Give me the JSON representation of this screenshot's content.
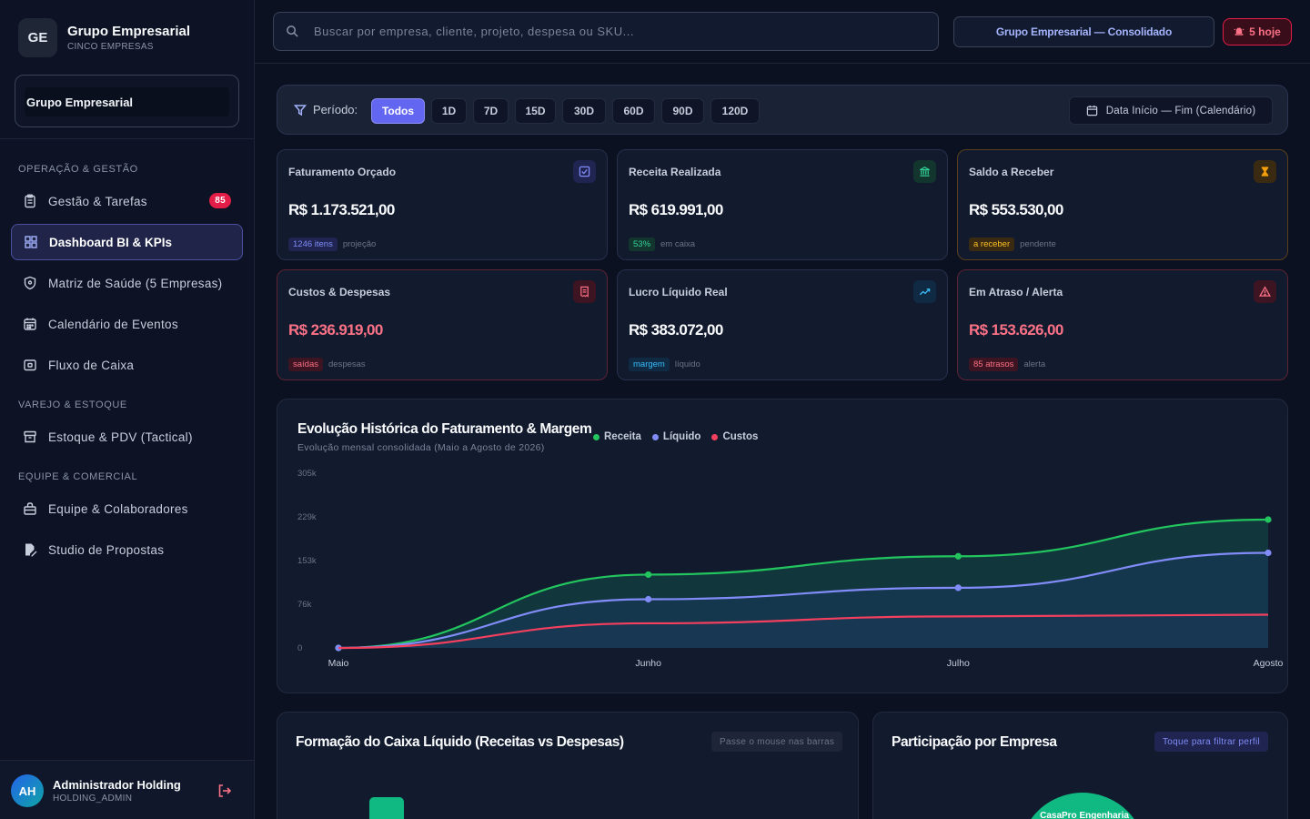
{
  "brand": {
    "initials": "GE",
    "name": "Grupo Empresarial",
    "subtitle": "CINCO EMPRESAS"
  },
  "company_selector": {
    "value": "Grupo Empresarial"
  },
  "sidebar": {
    "sections": [
      {
        "label": "OPERAÇÃO & GESTÃO"
      },
      {
        "label": "VAREJO & ESTOQUE"
      },
      {
        "label": "EQUIPE & COMERCIAL"
      }
    ],
    "items": [
      {
        "label": "Gestão & Tarefas",
        "icon": "clipboard-icon",
        "badge": "85"
      },
      {
        "label": "Dashboard BI & KPIs",
        "icon": "grid-icon",
        "active": true
      },
      {
        "label": "Matriz de Saúde (5 Empresas)",
        "icon": "shield-icon"
      },
      {
        "label": "Calendário de Eventos",
        "icon": "calendar-icon"
      },
      {
        "label": "Fluxo de Caixa",
        "icon": "wallet-icon"
      },
      {
        "label": "Estoque & PDV (Tactical)",
        "icon": "box-icon"
      },
      {
        "label": "Equipe & Colaboradores",
        "icon": "team-icon"
      },
      {
        "label": "Studio de Propostas",
        "icon": "edit-doc-icon"
      }
    ]
  },
  "user": {
    "initials": "AH",
    "name": "Administrador Holding",
    "role": "HOLDING_ADMIN"
  },
  "search": {
    "placeholder": "Buscar por empresa, cliente, projeto, despesa ou SKU..."
  },
  "header": {
    "context_label": "Grupo Empresarial — Consolidado",
    "alert_label": "5 hoje"
  },
  "period": {
    "label": "Período:",
    "options": [
      "Todos",
      "1D",
      "7D",
      "15D",
      "30D",
      "60D",
      "90D",
      "120D"
    ],
    "selected": "Todos",
    "date_range_label": "Data Início — Fim (Calendário)"
  },
  "kpis": [
    {
      "title": "Faturamento Orçado",
      "value": "R$ 1.173.521,00",
      "tag": "1246 itens",
      "sub": "projeção",
      "icon": "check-square-icon",
      "tone": "indigo"
    },
    {
      "title": "Receita Realizada",
      "value": "R$ 619.991,00",
      "tag": "53%",
      "sub": "em caixa",
      "icon": "bank-icon",
      "tone": "green"
    },
    {
      "title": "Saldo a Receber",
      "value": "R$ 553.530,00",
      "tag": "a receber",
      "sub": "pendente",
      "icon": "hourglass-icon",
      "tone": "amber"
    },
    {
      "title": "Custos & Despesas",
      "value": "R$ 236.919,00",
      "tag": "saídas",
      "sub": "despesas",
      "icon": "receipt-icon",
      "tone": "red"
    },
    {
      "title": "Lucro Líquido Real",
      "value": "R$ 383.072,00",
      "tag": "margem",
      "sub": "líquido",
      "icon": "trend-up-icon",
      "tone": "blue"
    },
    {
      "title": "Em Atraso / Alerta",
      "value": "R$ 153.626,00",
      "tag": "85 atrasos",
      "sub": "alerta",
      "icon": "warning-icon",
      "tone": "red"
    }
  ],
  "colors": {
    "receita": "#22c55e",
    "liquido": "#818cf8",
    "custos": "#f43f5e",
    "accent": "#6366f1"
  },
  "chart_data": {
    "type": "area",
    "title": "Evolução Histórica do Faturamento & Margem",
    "subtitle": "Evolução mensal consolidada (Maio a Agosto de 2026)",
    "categories": [
      "Maio",
      "Junho",
      "Julho",
      "Agosto"
    ],
    "y_ticks": [
      "0",
      "76k",
      "153k",
      "229k",
      "305k"
    ],
    "ylim": [
      0,
      305000
    ],
    "series": [
      {
        "name": "Receita",
        "values": [
          0,
          128000,
          160000,
          224000
        ]
      },
      {
        "name": "Líquido",
        "values": [
          0,
          85000,
          105000,
          166000
        ]
      },
      {
        "name": "Custos",
        "values": [
          0,
          43000,
          55000,
          58000
        ]
      }
    ],
    "legend": "top"
  },
  "cards": {
    "cash": {
      "title": "Formação do Caixa Líquido (Receitas vs Despesas)",
      "hint": "Passe o mouse nas barras"
    },
    "share": {
      "title": "Participação por Empresa",
      "hint": "Toque para filtrar perfil",
      "pie_label": "CasaPro Engenharia"
    }
  }
}
